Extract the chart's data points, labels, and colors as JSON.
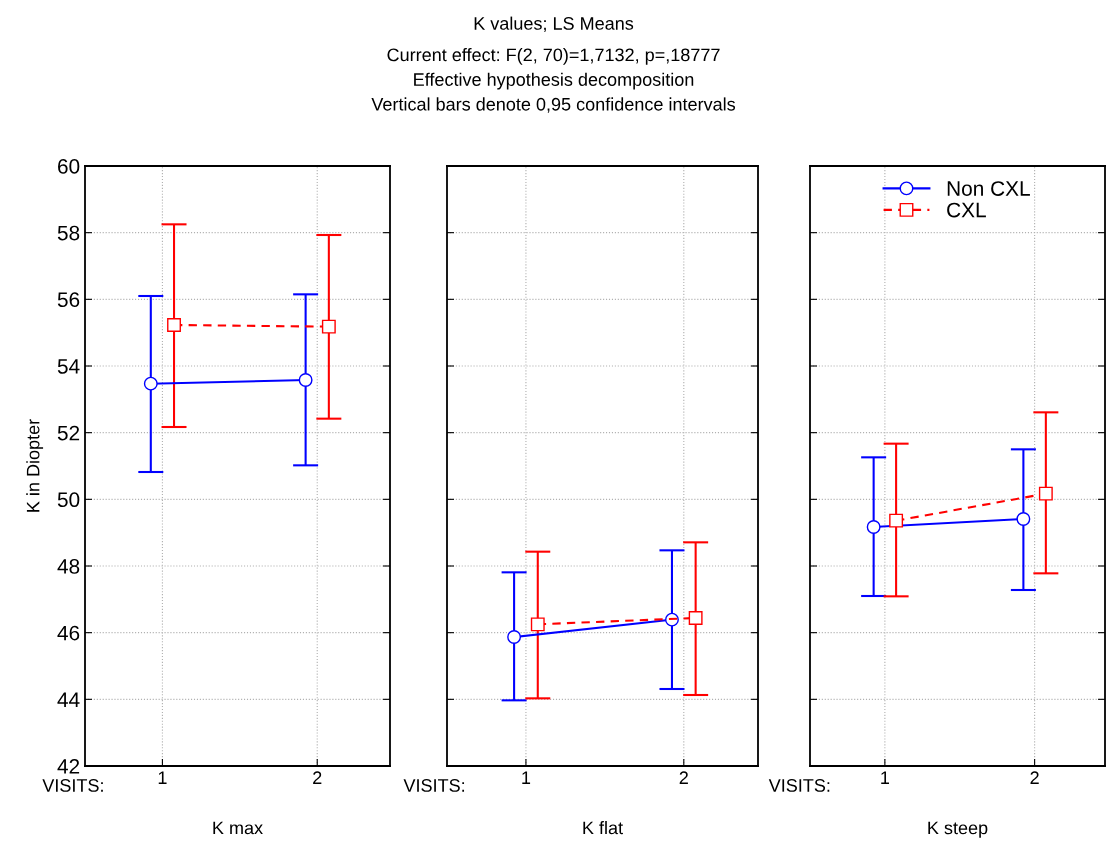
{
  "chart_data": [
    {
      "type": "line",
      "xlabel": "K max",
      "ylabel": "K in Diopter",
      "annotations": [
        "VISITS:"
      ],
      "categories": [
        "1",
        "2"
      ],
      "ylim": [
        42,
        60
      ],
      "yticks": [
        42,
        44,
        46,
        48,
        50,
        52,
        54,
        56,
        58,
        60
      ],
      "grid": true,
      "legend": false,
      "series": [
        {
          "color": "#0000ff",
          "marker": "circle",
          "line_style": "solid",
          "values": [
            53.47,
            53.58
          ],
          "errors": [
            [
              50.82,
              56.1
            ],
            [
              51.02,
              56.15
            ]
          ]
        },
        {
          "color": "#ff0000",
          "marker": "square",
          "line_style": "dashed",
          "values": [
            55.23,
            55.18
          ],
          "errors": [
            [
              52.17,
              58.25
            ],
            [
              52.42,
              57.93
            ]
          ]
        }
      ]
    },
    {
      "type": "line",
      "title": "K values; LS Means",
      "subtitle": "Current effect: F(2, 70)=1,7132, p=,18777\nEffective hypothesis decomposition\nVertical bars denote 0,95 confidence intervals",
      "xlabel": "K flat",
      "annotations": [
        "VISITS:"
      ],
      "categories": [
        "1",
        "2"
      ],
      "ylim": [
        42,
        60
      ],
      "yticks": [
        42,
        44,
        46,
        48,
        50,
        52,
        54,
        56,
        58,
        60
      ],
      "tick_labels": "x",
      "grid": true,
      "legend": false,
      "series": [
        {
          "color": "#0000ff",
          "marker": "circle",
          "line_style": "solid",
          "values": [
            45.87,
            46.39
          ],
          "errors": [
            [
              43.97,
              47.81
            ],
            [
              44.31,
              48.47
            ]
          ]
        },
        {
          "color": "#ff0000",
          "marker": "square",
          "line_style": "dashed",
          "values": [
            46.25,
            46.44
          ],
          "errors": [
            [
              44.03,
              48.43
            ],
            [
              44.13,
              48.71
            ]
          ]
        }
      ]
    },
    {
      "type": "line",
      "xlabel": "K steep",
      "annotations": [
        "VISITS:"
      ],
      "categories": [
        "1",
        "2"
      ],
      "ylim": [
        42,
        60
      ],
      "yticks": [
        42,
        44,
        46,
        48,
        50,
        52,
        54,
        56,
        58,
        60
      ],
      "tick_labels": "x",
      "grid": true,
      "legend": "top left",
      "series": [
        {
          "name": "Non CXL",
          "color": "#0000ff",
          "marker": "circle",
          "line_style": "solid",
          "values": [
            49.17,
            49.41
          ],
          "errors": [
            [
              47.1,
              51.26
            ],
            [
              47.28,
              51.5
            ]
          ]
        },
        {
          "name": "CXL",
          "color": "#ff0000",
          "marker": "square",
          "line_style": "dashed",
          "values": [
            49.36,
            50.17
          ],
          "errors": [
            [
              47.09,
              51.67
            ],
            [
              47.78,
              52.61
            ]
          ]
        }
      ]
    }
  ]
}
